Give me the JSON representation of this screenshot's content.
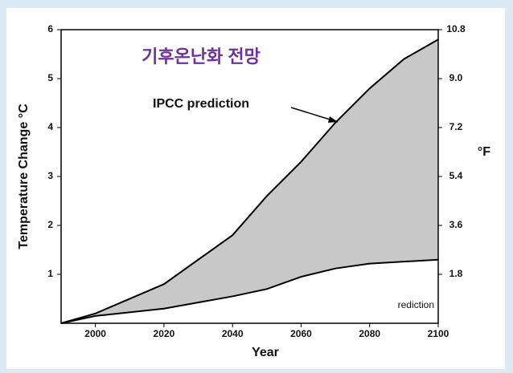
{
  "chart_data": {
    "type": "area-band",
    "title": "기후온난화 전망",
    "x_label": "Year",
    "y_label": "Temperature Change °C",
    "y2_label": "°F",
    "x": [
      1990,
      2000,
      2020,
      2040,
      2050,
      2060,
      2070,
      2080,
      2090,
      2100
    ],
    "series": [
      {
        "name": "IPCC prediction",
        "color": "#c8c8c8",
        "values": [
          0,
          0.2,
          0.8,
          1.8,
          2.6,
          3.3,
          4.1,
          4.8,
          5.4,
          5.8
        ]
      },
      {
        "name": "rediction",
        "color": "#ffffff",
        "values": [
          0,
          0.15,
          0.3,
          0.55,
          0.7,
          0.95,
          1.12,
          1.22,
          1.26,
          1.3
        ]
      }
    ],
    "xlim": [
      1990,
      2100
    ],
    "xticks": [
      2000,
      2020,
      2040,
      2060,
      2080,
      2100
    ],
    "ylim": [
      0,
      6
    ],
    "yticks": [
      1,
      2,
      3,
      4,
      5,
      6
    ],
    "y2lim": [
      0,
      10.8
    ],
    "y2ticks": [
      1.8,
      3.6,
      5.4,
      7.2,
      {
        "value": 9,
        "label": "9.0"
      },
      10.8
    ]
  }
}
